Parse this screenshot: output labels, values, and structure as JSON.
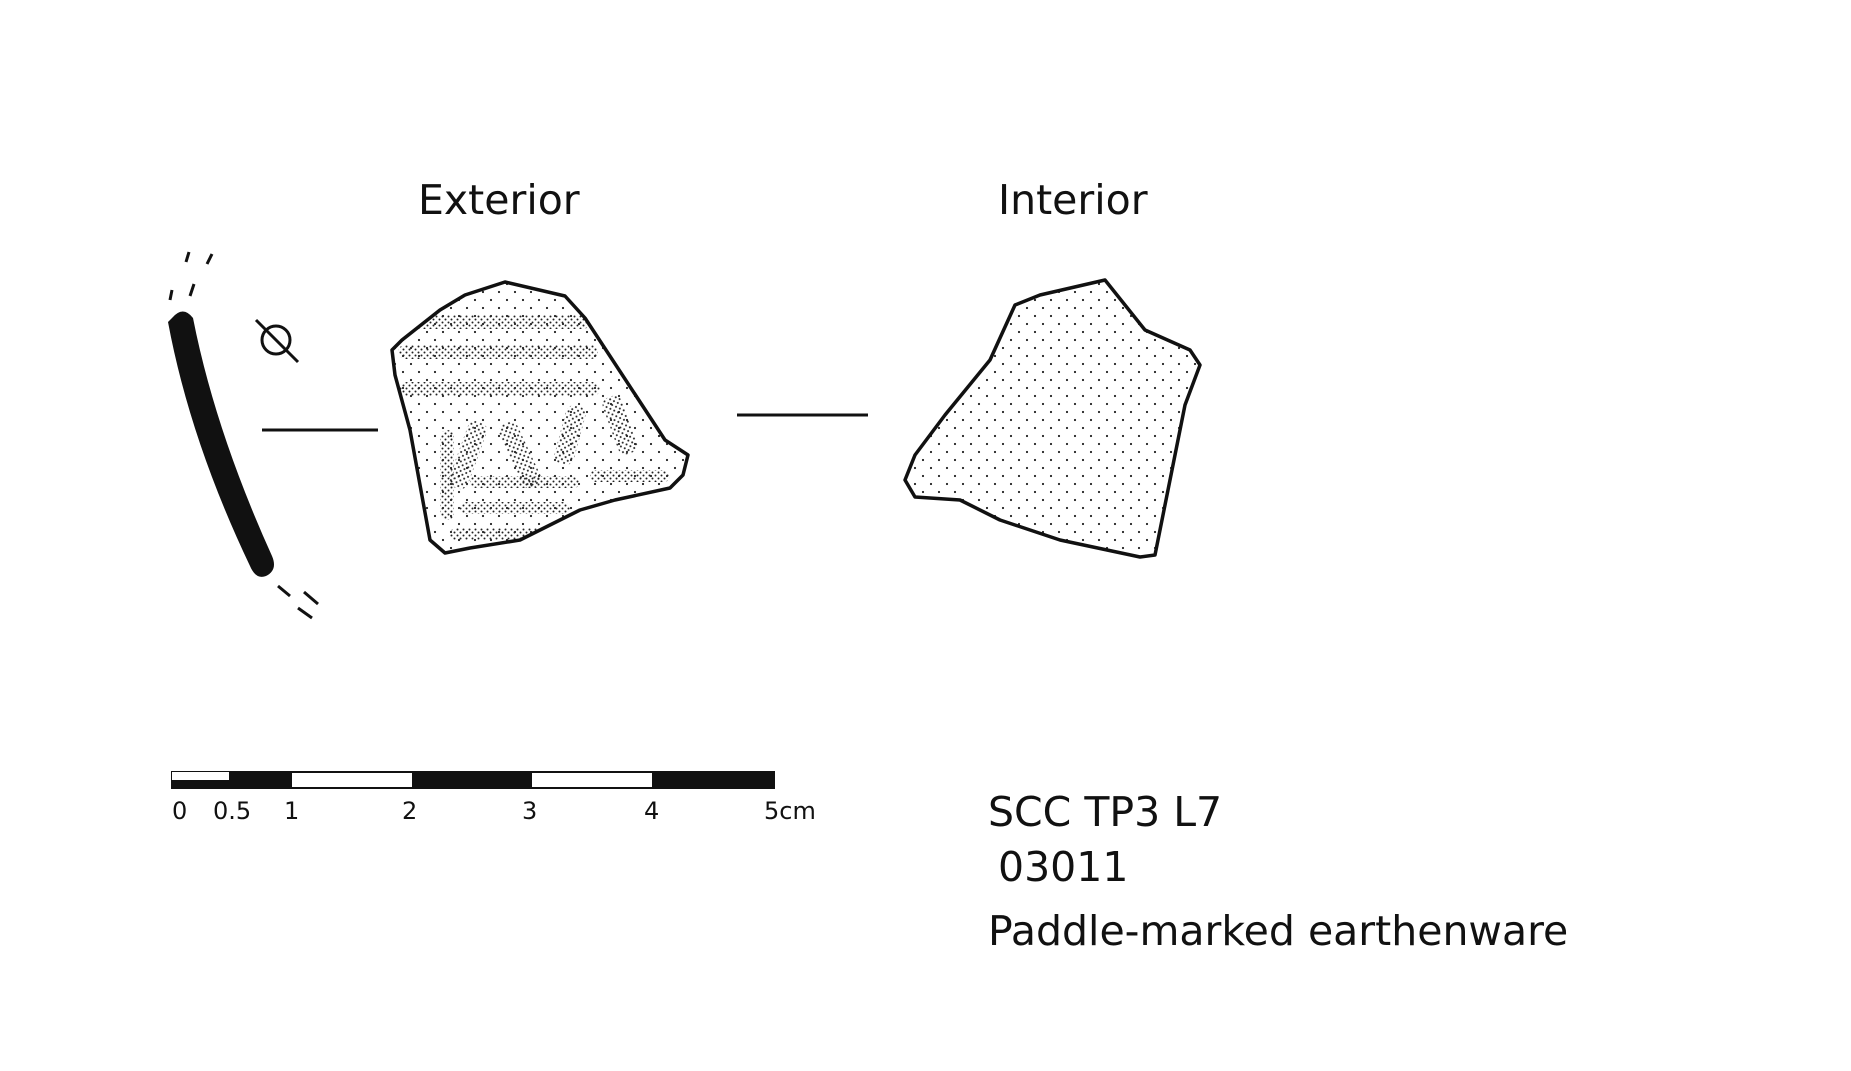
{
  "views": {
    "exterior_label": "Exterior",
    "interior_label": "Interior"
  },
  "scale_bar": {
    "ticks": [
      "0",
      "0.5",
      "1",
      "2",
      "3",
      "4",
      "5cm"
    ]
  },
  "specimen": {
    "site_code": "SCC TP3 L7",
    "catalog_number": "03011",
    "description": "Paddle-marked earthenware"
  },
  "colors": {
    "ink": "#111111",
    "background": "#ffffff"
  }
}
